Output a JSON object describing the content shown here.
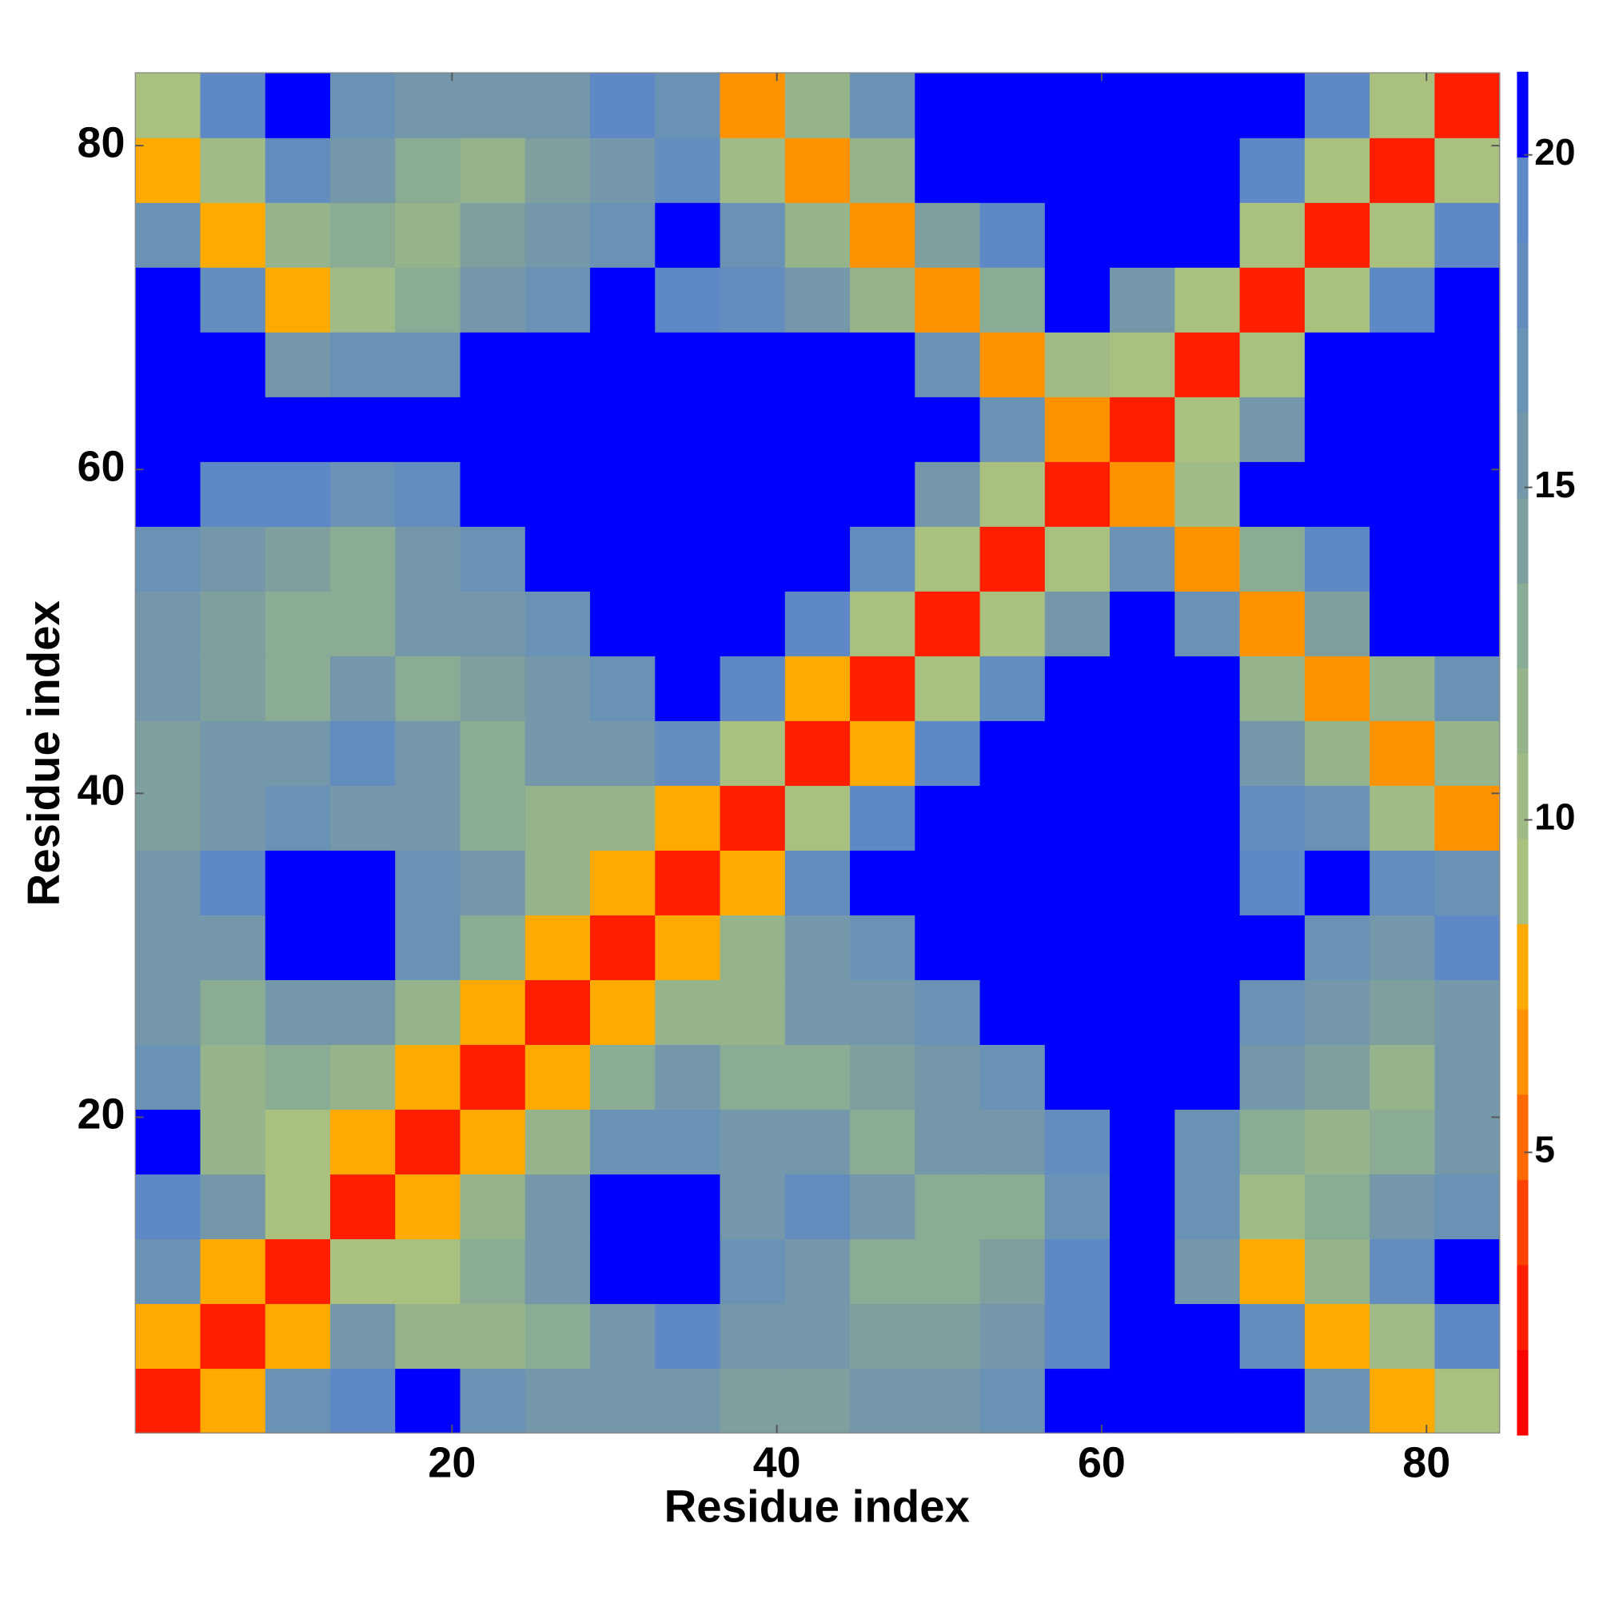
{
  "chart_data": {
    "type": "heatmap",
    "xlabel": "Residue index",
    "ylabel": "Residue index",
    "x": [
      2.5,
      6.5,
      10.5,
      14.5,
      18.5,
      22.5,
      26.5,
      30.5,
      34.5,
      38.5,
      42.5,
      46.5,
      50.5,
      54.5,
      58.5,
      62.5,
      66.5,
      70.5,
      74.5,
      78.5,
      82.5
    ],
    "y": [
      2.5,
      6.5,
      10.5,
      14.5,
      18.5,
      22.5,
      26.5,
      30.5,
      34.5,
      38.5,
      42.5,
      46.5,
      50.5,
      54.5,
      58.5,
      62.5,
      66.5,
      70.5,
      74.5,
      78.5,
      82.5
    ],
    "xlim": [
      0.5,
      84.5
    ],
    "ylim": [
      0.5,
      84.5
    ],
    "xticks": [
      20,
      40,
      60,
      80
    ],
    "yticks": [
      20,
      40,
      60,
      80
    ],
    "values": [
      [
        3,
        8,
        17,
        19,
        20,
        17,
        15,
        15,
        16,
        14,
        14,
        16,
        16,
        17,
        20,
        21,
        21,
        21,
        17,
        8,
        9
      ],
      [
        8,
        3,
        8,
        15,
        11,
        11,
        13,
        16,
        19,
        16,
        15,
        14,
        14,
        16,
        19,
        21,
        21,
        18,
        8,
        10,
        19
      ],
      [
        17,
        8,
        3,
        9,
        9,
        13,
        15,
        21,
        21,
        17,
        16,
        13,
        13,
        14,
        19,
        21,
        16,
        8,
        12,
        18,
        21
      ],
      [
        19,
        15,
        9,
        3,
        8,
        12,
        16,
        21,
        20,
        16,
        18,
        15,
        13,
        13,
        17,
        20,
        17,
        10,
        13,
        15,
        17
      ],
      [
        20,
        11,
        9,
        8,
        3,
        8,
        12,
        17,
        17,
        15,
        15,
        13,
        15,
        15,
        18,
        21,
        17,
        13,
        12,
        13,
        16
      ],
      [
        17,
        11,
        13,
        12,
        8,
        3,
        8,
        13,
        15,
        13,
        13,
        14,
        15,
        17,
        21,
        21,
        20,
        15,
        14,
        12,
        15
      ],
      [
        15,
        13,
        15,
        16,
        12,
        8,
        3,
        8,
        12,
        12,
        15,
        15,
        17,
        21,
        21,
        21,
        21,
        17,
        15,
        14,
        16
      ],
      [
        15,
        16,
        21,
        21,
        17,
        13,
        8,
        3,
        8,
        12,
        16,
        17,
        20,
        21,
        21,
        21,
        21,
        20,
        17,
        15,
        19
      ],
      [
        16,
        19,
        21,
        20,
        17,
        15,
        12,
        8,
        3,
        8,
        18,
        21,
        21,
        21,
        21,
        21,
        21,
        19,
        20,
        18,
        17
      ],
      [
        14,
        16,
        17,
        16,
        15,
        13,
        12,
        12,
        8,
        3,
        9,
        19,
        21,
        21,
        21,
        21,
        21,
        18,
        17,
        10,
        7
      ],
      [
        14,
        15,
        16,
        18,
        15,
        13,
        15,
        16,
        18,
        9,
        3,
        8,
        19,
        21,
        21,
        21,
        21,
        16,
        11,
        7,
        12
      ],
      [
        16,
        14,
        13,
        15,
        13,
        14,
        15,
        17,
        21,
        19,
        8,
        3,
        9,
        18,
        21,
        21,
        21,
        11,
        7,
        12,
        17
      ],
      [
        16,
        14,
        13,
        13,
        15,
        15,
        17,
        20,
        21,
        21,
        19,
        9,
        3,
        9,
        16,
        21,
        17,
        7,
        14,
        20,
        21
      ],
      [
        17,
        16,
        14,
        13,
        15,
        17,
        21,
        21,
        21,
        21,
        21,
        18,
        9,
        3,
        9,
        17,
        7,
        13,
        19,
        21,
        21
      ],
      [
        20,
        19,
        19,
        17,
        18,
        21,
        21,
        21,
        21,
        21,
        21,
        21,
        16,
        9,
        3,
        6,
        10,
        20,
        21,
        21,
        21
      ],
      [
        21,
        21,
        21,
        20,
        21,
        21,
        21,
        21,
        21,
        21,
        21,
        21,
        21,
        17,
        6,
        3,
        9,
        16,
        21,
        21,
        21
      ],
      [
        21,
        21,
        16,
        17,
        17,
        20,
        21,
        21,
        21,
        21,
        21,
        21,
        17,
        7,
        10,
        9,
        3,
        9,
        20,
        21,
        21
      ],
      [
        21,
        18,
        8,
        10,
        13,
        15,
        17,
        20,
        19,
        18,
        16,
        11,
        7,
        13,
        20,
        16,
        9,
        3,
        9,
        19,
        21
      ],
      [
        17,
        8,
        12,
        13,
        12,
        14,
        15,
        17,
        20,
        17,
        11,
        7,
        14,
        19,
        21,
        21,
        20,
        9,
        3,
        9,
        19
      ],
      [
        8,
        10,
        18,
        15,
        13,
        12,
        14,
        15,
        18,
        10,
        7,
        12,
        20,
        21,
        21,
        21,
        21,
        19,
        9,
        3,
        9
      ],
      [
        9,
        19,
        21,
        17,
        16,
        15,
        16,
        19,
        17,
        7,
        12,
        17,
        21,
        21,
        21,
        21,
        21,
        21,
        19,
        9,
        3
      ]
    ],
    "colorbar": {
      "clim": [
        0.75,
        21.25
      ],
      "ticks": [
        5,
        10,
        15,
        20
      ],
      "colors": [
        "#ff0000",
        "#ff1e00",
        "#ff4200",
        "#ff6a00",
        "#ff9200",
        "#ffaa00",
        "#a9c07f",
        "#a0bb85",
        "#96b48c",
        "#8aab94",
        "#7f9f9f",
        "#7498aa",
        "#6a92b4",
        "#638cbf",
        "#5e88c6",
        "#0000ff"
      ]
    }
  }
}
